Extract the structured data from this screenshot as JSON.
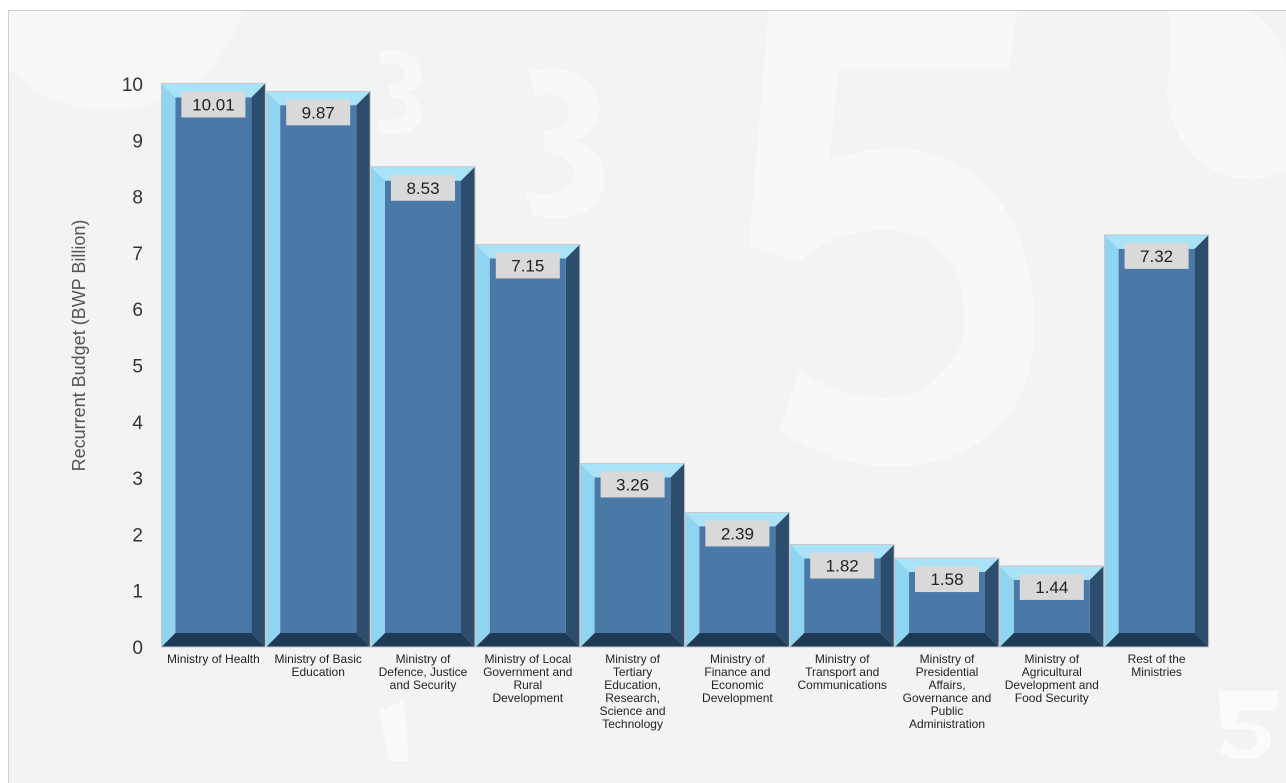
{
  "chart_data": {
    "type": "bar",
    "title": "",
    "xlabel": "",
    "ylabel": "Recurrent Budget (BWP Billion)",
    "ylim": [
      0,
      10
    ],
    "yticks": [
      "0",
      "1",
      "2",
      "3",
      "4",
      "5",
      "6",
      "7",
      "8",
      "9",
      "10"
    ],
    "grid": false,
    "legend": "none",
    "categories": [
      [
        "Ministry of Health"
      ],
      [
        "Ministry of Basic",
        "Education"
      ],
      [
        "Ministry of",
        "Defence, Justice",
        "and Security"
      ],
      [
        "Ministry of Local",
        "Government and",
        "Rural",
        "Development"
      ],
      [
        "Ministry of",
        "Tertiary",
        "Education,",
        "Research,",
        "Science and",
        "Technology"
      ],
      [
        "Ministry of",
        "Finance and",
        "Economic",
        "Development"
      ],
      [
        "Ministry of",
        "Transport and",
        "Communications"
      ],
      [
        "Ministry of",
        "Presidential",
        "Affairs,",
        "Governance and",
        "Public",
        "Administration"
      ],
      [
        "Ministry of",
        "Agricultural",
        "Development and",
        "Food Security"
      ],
      [
        "Rest of the",
        "Ministries"
      ]
    ],
    "values": [
      10.01,
      9.87,
      8.53,
      7.15,
      3.26,
      2.39,
      1.82,
      1.58,
      1.44,
      7.32
    ],
    "data_labels": [
      "10.01",
      "9.87",
      "8.53",
      "7.15",
      "3.26",
      "2.39",
      "1.82",
      "1.58",
      "1.44",
      "7.32"
    ],
    "colors": {
      "bar_face": "#4a79a8",
      "bar_rim_top": "#a9e3f7",
      "bar_rim_left": "#8fd4f0",
      "bar_right": "#2d4d6e",
      "bar_bottom": "#1f3a57",
      "label_box": "#d9d9d9"
    }
  }
}
